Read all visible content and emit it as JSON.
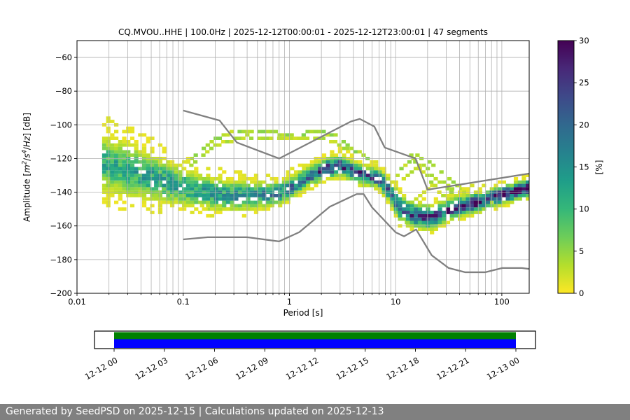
{
  "footer": {
    "text": "Generated by SeedPSD on 2025-12-15 | Calculations updated on 2025-12-13"
  },
  "chart_data": {
    "type": "heatmap",
    "title": "CQ.MVOU..HHE | 100.0Hz | 2025-12-12T00:00:01 - 2025-12-12T23:00:01 | 47 segments",
    "station": "CQ.MVOU..HHE",
    "sampling_rate": "100.0Hz",
    "time_range": "2025-12-12T00:00:01 - 2025-12-12T23:00:01",
    "segments": "47 segments",
    "xlabel": "Period [s]",
    "ylabel": "Amplitude [m2/s4/Hz] [dB]",
    "ylabel_parts": [
      [
        "Amplitude [",
        "n"
      ],
      [
        "m",
        "i"
      ],
      [
        "2",
        "sup"
      ],
      [
        "/",
        "n"
      ],
      [
        "s",
        "i"
      ],
      [
        "4",
        "sup"
      ],
      [
        "/",
        "n"
      ],
      [
        "Hz",
        "i"
      ],
      [
        "] [dB]",
        "n"
      ]
    ],
    "x_scale": "log",
    "xlim": [
      0.01,
      181
    ],
    "ylim": [
      -200,
      -50
    ],
    "grid": true,
    "x_ticks": {
      "values": [
        0.01,
        0.1,
        1,
        10,
        100
      ],
      "labels": [
        "0.01",
        "0.1",
        "1",
        "10",
        "100"
      ]
    },
    "y_ticks": {
      "values": [
        -60,
        -80,
        -100,
        -120,
        -140,
        -160,
        -180,
        -200
      ],
      "labels": [
        "−60",
        "−80",
        "−100",
        "−120",
        "−140",
        "−160",
        "−180",
        "−200"
      ]
    },
    "colorbar": {
      "label": "[%]",
      "min": 0,
      "max": 30,
      "ticks": [
        0,
        5,
        10,
        15,
        20,
        25,
        30
      ],
      "colormap": "viridis_r",
      "stops": [
        "#440154",
        "#482878",
        "#3e4989",
        "#31688e",
        "#26828e",
        "#1f9e89",
        "#35b779",
        "#6dcd59",
        "#b4de2c",
        "#fde725"
      ]
    },
    "histogram_bins": {
      "period_min": 0.018,
      "period_max": 181,
      "octave_step": 0.125,
      "db_step": 2
    },
    "psd_band": {
      "comment_cols": [
        "period_s",
        "mode_db",
        "sigma_db",
        "peak_percent"
      ],
      "points": [
        [
          0.018,
          -122,
          8.5,
          11
        ],
        [
          0.03,
          -126,
          8,
          12
        ],
        [
          0.05,
          -130,
          7,
          13
        ],
        [
          0.08,
          -134,
          6,
          13
        ],
        [
          0.13,
          -138,
          5,
          14
        ],
        [
          0.25,
          -141,
          4.5,
          15
        ],
        [
          0.5,
          -141,
          4,
          16
        ],
        [
          0.8,
          -139.5,
          3.5,
          17
        ],
        [
          1.0,
          -137,
          3.2,
          18
        ],
        [
          1.5,
          -130,
          3,
          20
        ],
        [
          2.2,
          -125,
          3,
          24
        ],
        [
          3.0,
          -123.5,
          3,
          26
        ],
        [
          3.8,
          -126,
          3,
          22
        ],
        [
          5.0,
          -129,
          2.8,
          24
        ],
        [
          7.0,
          -131,
          2.8,
          22
        ],
        [
          8.5,
          -137,
          3.5,
          20
        ],
        [
          11,
          -148,
          4,
          22
        ],
        [
          15,
          -153,
          3.5,
          24
        ],
        [
          22,
          -154,
          3.5,
          24
        ],
        [
          30,
          -150,
          3.2,
          24
        ],
        [
          45,
          -147,
          3,
          26
        ],
        [
          70,
          -143.5,
          2.8,
          28
        ],
        [
          110,
          -140,
          2.6,
          29
        ],
        [
          181,
          -136.5,
          2.6,
          30
        ]
      ]
    },
    "outlier_curves": [
      {
        "pct": 4,
        "points": [
          [
            0.055,
            -142
          ],
          [
            0.08,
            -132
          ],
          [
            0.12,
            -120
          ],
          [
            0.2,
            -108
          ],
          [
            0.3,
            -104.5
          ],
          [
            0.5,
            -104
          ],
          [
            0.8,
            -105
          ],
          [
            1.2,
            -105.5
          ],
          [
            2,
            -104
          ],
          [
            2.6,
            -106
          ],
          [
            3.5,
            -111
          ],
          [
            5,
            -119
          ],
          [
            7,
            -127
          ],
          [
            8.5,
            -133
          ]
        ]
      },
      {
        "pct": 3,
        "points": [
          [
            0.1,
            -128
          ],
          [
            0.2,
            -112
          ],
          [
            0.4,
            -107
          ],
          [
            0.9,
            -108
          ],
          [
            1.8,
            -107
          ],
          [
            3,
            -112
          ],
          [
            4.5,
            -120
          ]
        ]
      },
      {
        "pct": 3.5,
        "points": [
          [
            8,
            -140
          ],
          [
            10,
            -131
          ],
          [
            13,
            -122
          ],
          [
            16,
            -118.5
          ],
          [
            20,
            -122
          ],
          [
            26,
            -128
          ],
          [
            35,
            -134
          ],
          [
            50,
            -141
          ],
          [
            70,
            -146
          ]
        ]
      },
      {
        "pct": 3,
        "points": [
          [
            10,
            -138
          ],
          [
            14,
            -128
          ],
          [
            18,
            -124
          ],
          [
            25,
            -133
          ],
          [
            33,
            -140
          ],
          [
            45,
            -146
          ]
        ]
      },
      {
        "pct": 3,
        "points": [
          [
            12,
            -152
          ],
          [
            18,
            -140
          ],
          [
            26,
            -131
          ],
          [
            38,
            -142
          ],
          [
            55,
            -136
          ],
          [
            80,
            -148
          ]
        ]
      },
      {
        "pct": 3,
        "points": [
          [
            14,
            -119
          ],
          [
            20,
            -131
          ],
          [
            28,
            -143
          ],
          [
            40,
            -135
          ],
          [
            60,
            -149
          ],
          [
            90,
            -144
          ]
        ]
      },
      {
        "pct": 3,
        "points": [
          [
            0.15,
            -149
          ],
          [
            0.3,
            -151
          ],
          [
            0.6,
            -149
          ],
          [
            1,
            -143
          ]
        ]
      },
      {
        "pct": 3,
        "points": [
          [
            9,
            -146
          ],
          [
            12,
            -157
          ],
          [
            16,
            -160
          ],
          [
            22,
            -158
          ],
          [
            30,
            -155
          ]
        ]
      }
    ],
    "noise_models": {
      "color": "#808080",
      "nhnm": [
        [
          0.1,
          -91.5
        ],
        [
          0.22,
          -97.4
        ],
        [
          0.32,
          -110.5
        ],
        [
          0.8,
          -120
        ],
        [
          3.8,
          -98
        ],
        [
          4.6,
          -96.5
        ],
        [
          6.3,
          -101
        ],
        [
          7.9,
          -113.5
        ],
        [
          15.4,
          -120
        ],
        [
          20,
          -138.5
        ],
        [
          354.8,
          -126
        ]
      ],
      "nlnm": [
        [
          0.1,
          -168
        ],
        [
          0.17,
          -166.7
        ],
        [
          0.4,
          -166.7
        ],
        [
          0.8,
          -169.2
        ],
        [
          1.24,
          -163.7
        ],
        [
          2.4,
          -148.6
        ],
        [
          4.3,
          -141.1
        ],
        [
          5,
          -141.1
        ],
        [
          6,
          -149
        ],
        [
          10,
          -163.8
        ],
        [
          12,
          -166.2
        ],
        [
          15.6,
          -162.1
        ],
        [
          21.9,
          -177.5
        ],
        [
          31.6,
          -185
        ],
        [
          45,
          -187.5
        ],
        [
          70,
          -187.5
        ],
        [
          101,
          -185
        ],
        [
          154,
          -185
        ],
        [
          328,
          -187.5
        ]
      ]
    },
    "timeline": {
      "tick_labels": [
        "12-12 00",
        "12-12 03",
        "12-12 06",
        "12-12 09",
        "12-12 12",
        "12-12 15",
        "12-12 18",
        "12-12 21",
        "12-13 00"
      ],
      "bars": [
        {
          "name": "data-coverage-green",
          "color": "#008000"
        },
        {
          "name": "data-coverage-blue",
          "color": "#0000ff"
        }
      ],
      "coverage": [
        0,
        1
      ]
    },
    "legend_position": "right-colorbar"
  },
  "colors": {
    "grid": "#b0b0b0",
    "axis": "#000000",
    "noise_model": "#808080",
    "footer_bg": "#808080",
    "footer_text": "#ffffff"
  }
}
